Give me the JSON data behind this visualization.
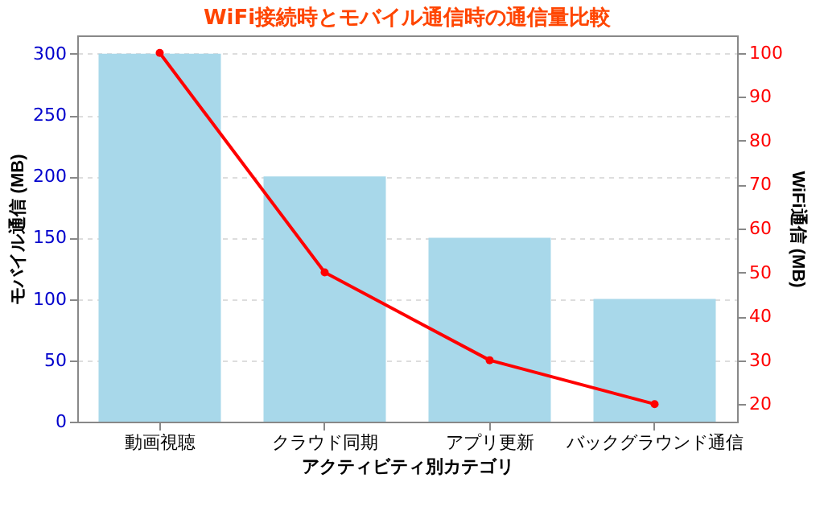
{
  "chart_data": {
    "type": "bar",
    "title": "WiFi接続時とモバイル通信時の通信量比較",
    "xlabel": "アクティビティ別カテゴリ",
    "ylabel": "モバイル通信 (MB)",
    "y2label": "WiFi通信 (MB)",
    "categories": [
      "動画視聴",
      "クラウド同期",
      "アプリ更新",
      "バックグラウンド通信"
    ],
    "series": [
      {
        "color": "#a8d8ea",
        "values": [
          300,
          200,
          150,
          100
        ]
      },
      {
        "type": "line",
        "axis": "y2",
        "color": "#ff0000",
        "marker": "circle",
        "values": [
          100,
          50,
          30,
          20
        ]
      }
    ],
    "ylim": [
      0,
      315
    ],
    "yticks": [
      0,
      50,
      100,
      150,
      200,
      250,
      300
    ],
    "y2lim": [
      16,
      104
    ],
    "y2ticks": [
      20,
      30,
      40,
      50,
      60,
      70,
      80,
      90,
      100
    ],
    "grid": "y"
  }
}
